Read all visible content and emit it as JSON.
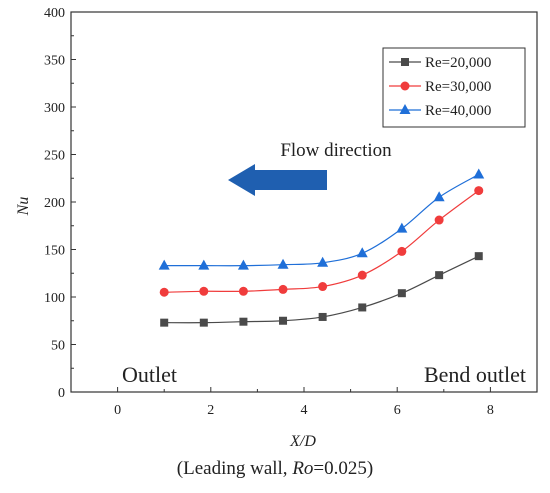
{
  "chart_data": {
    "type": "line",
    "xlabel": "X/D",
    "ylabel": "Nu",
    "xlim": [
      -1,
      9
    ],
    "ylim": [
      0,
      400
    ],
    "x_ticks": [
      0,
      2,
      4,
      6,
      8
    ],
    "y_ticks": [
      0,
      50,
      100,
      150,
      200,
      250,
      300,
      350,
      400
    ],
    "grid": false,
    "legend_position": "top-right",
    "x": [
      1.0,
      1.85,
      2.7,
      3.55,
      4.4,
      5.25,
      6.1,
      6.9,
      7.75
    ],
    "series": [
      {
        "name": "Re=20,000",
        "color": "#4a4a4a",
        "marker": "square",
        "values": [
          73,
          73,
          74,
          75,
          79,
          89,
          104,
          123,
          143
        ]
      },
      {
        "name": "Re=30,000",
        "color": "#f03c3c",
        "marker": "circle",
        "values": [
          105,
          106,
          106,
          108,
          111,
          123,
          148,
          181,
          212
        ]
      },
      {
        "name": "Re=40,000",
        "color": "#1f6fd8",
        "marker": "triangle",
        "values": [
          133,
          133,
          133,
          134,
          136,
          146,
          172,
          205,
          229
        ]
      }
    ],
    "annotations": {
      "flow_direction": "Flow direction",
      "outlet": "Outlet",
      "bend_outlet": "Bend outlet"
    },
    "arrow_color": "#1f5fb0",
    "caption": {
      "prefix": "(Leading wall, ",
      "ro_symbol": "Ro",
      "suffix": "=0.025)"
    }
  }
}
